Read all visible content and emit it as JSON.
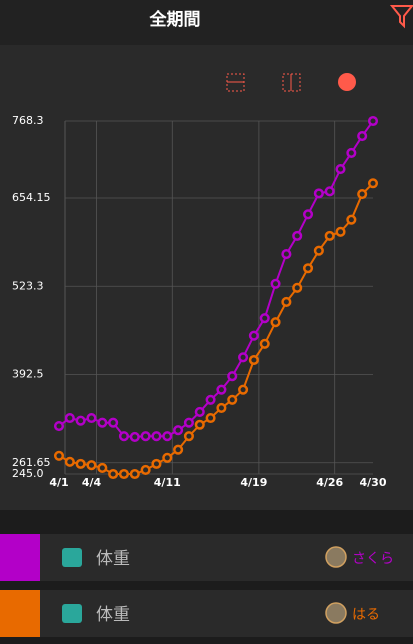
{
  "header": {
    "title": "全期間"
  },
  "chart_data": {
    "type": "line",
    "categories": [
      "4/1",
      null,
      null,
      "4/4",
      null,
      null,
      null,
      null,
      null,
      null,
      "4/11",
      null,
      null,
      null,
      null,
      null,
      null,
      null,
      "4/19",
      null,
      null,
      null,
      null,
      null,
      null,
      "4/26",
      null,
      null,
      null,
      "4/30"
    ],
    "series": [
      {
        "name": "さくら",
        "label": "体重",
        "color": "#b300c8",
        "values": [
          316,
          328,
          324,
          328,
          321,
          321,
          301,
          300,
          301,
          301,
          301,
          310,
          321,
          337,
          355,
          370,
          390,
          418,
          450,
          476,
          527,
          571,
          598,
          630,
          661,
          664,
          697,
          721,
          746,
          768.3
        ]
      },
      {
        "name": "はる",
        "label": "体重",
        "color": "#e86a00",
        "values": [
          272,
          263,
          260,
          258,
          254,
          245,
          245,
          245,
          251,
          260,
          269,
          281,
          301,
          318,
          328,
          343,
          355,
          370,
          414,
          438,
          470,
          500,
          521,
          550,
          576,
          598,
          604,
          622,
          660,
          676
        ]
      }
    ],
    "ylim": [
      245,
      768.3
    ],
    "yticks": [
      {
        "value": 245,
        "label": "245.0"
      },
      261.65,
      392.5,
      523.3,
      654.15,
      768.3
    ],
    "grid": true
  }
}
